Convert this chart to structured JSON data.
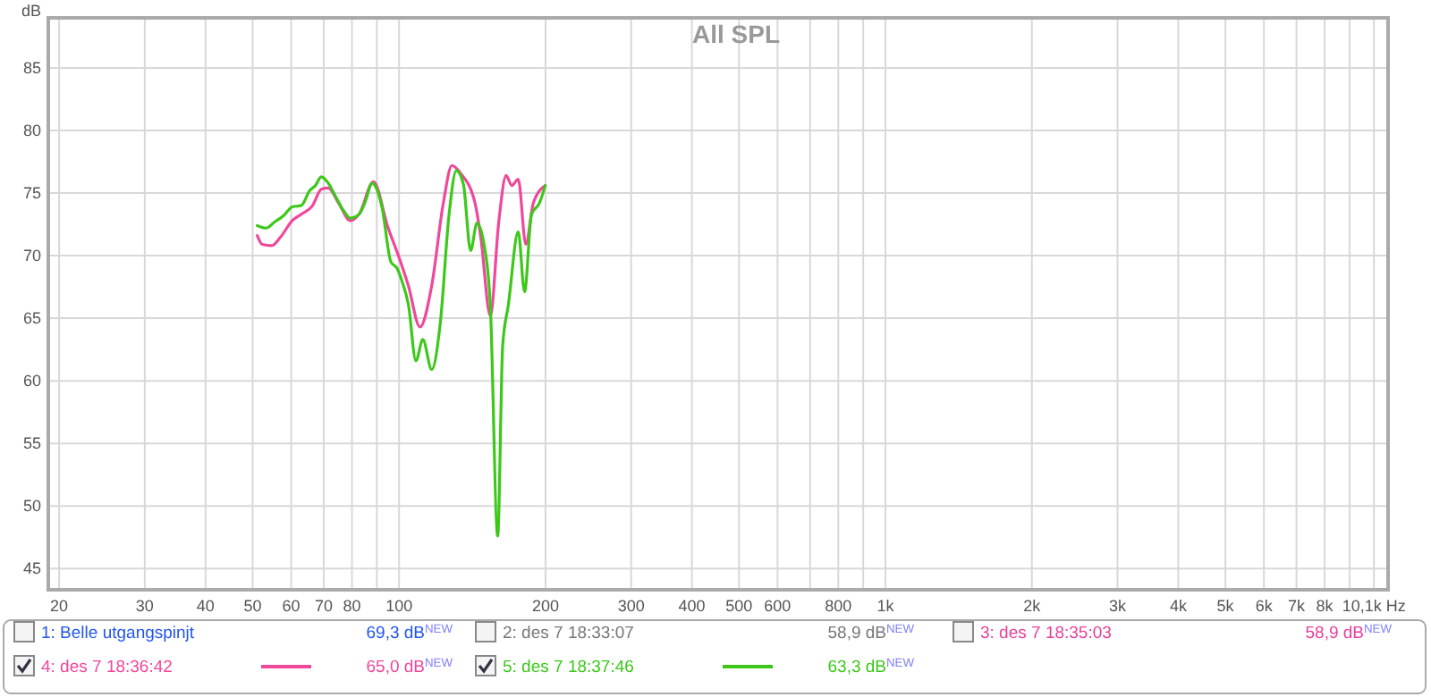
{
  "chart_data": {
    "type": "line",
    "title": "All SPL",
    "ylabel": "dB",
    "xlim": [
      19,
      10800
    ],
    "ylim": [
      43.3,
      89
    ],
    "log": "x",
    "grid": true,
    "legend": "bottom",
    "line_style": "solid",
    "marker": "none",
    "xticks": [
      20,
      30,
      40,
      50,
      60,
      70,
      80,
      {
        "value": 90,
        "label": null
      },
      100,
      200,
      300,
      400,
      500,
      600,
      {
        "value": 700,
        "label": null
      },
      800,
      {
        "value": 900,
        "label": null
      },
      {
        "value": 1000,
        "label": "1k"
      },
      {
        "value": 2000,
        "label": "2k"
      },
      {
        "value": 3000,
        "label": "3k"
      },
      {
        "value": 4000,
        "label": "4k"
      },
      {
        "value": 5000,
        "label": "5k"
      },
      {
        "value": 6000,
        "label": "6k"
      },
      {
        "value": 7000,
        "label": "7k"
      },
      {
        "value": 8000,
        "label": "8k"
      },
      {
        "value": 9000,
        "label": null
      },
      {
        "value": 10100,
        "label": "10,1k Hz"
      }
    ],
    "yticks": [
      45,
      50,
      55,
      60,
      65,
      70,
      75,
      80,
      85
    ],
    "series": [
      {
        "name": "4: des 7 18:36:42",
        "color": "#f0479b",
        "x": [
          51.1,
          52.3,
          54.7,
          57.1,
          60.3,
          62.9,
          66.4,
          69.2,
          71.5,
          75.1,
          79.4,
          82.7,
          88.6,
          94.8,
          100.3,
          104.5,
          110.4,
          116.7,
          123.3,
          128.4,
          133.7,
          143.3,
          147.3,
          154,
          160.4,
          166,
          170.5,
          175.8,
          182.2,
          188.8,
          199.8
        ],
        "values": [
          71.6,
          70.9,
          70.8,
          71.5,
          72.8,
          73.3,
          74.0,
          75.3,
          75.4,
          74.2,
          72.8,
          73.3,
          75.9,
          72.3,
          69.7,
          67.6,
          64.3,
          67.6,
          74.2,
          77.2,
          76.6,
          74.2,
          71.4,
          65.2,
          72.8,
          76.4,
          75.6,
          76.1,
          70.9,
          74.2,
          75.6
        ]
      },
      {
        "name": "5: des 7 18:37:46",
        "color": "#3cc819",
        "x": [
          51.1,
          53.3,
          55.5,
          57.9,
          60.3,
          62.9,
          65.5,
          67.3,
          69.2,
          71.5,
          74.1,
          77.2,
          79.4,
          82.7,
          85,
          88.1,
          89.8,
          92.3,
          96.2,
          99,
          101.7,
          104.5,
          108.3,
          111.9,
          116.7,
          121.6,
          126.7,
          131.1,
          135.6,
          140.3,
          144.6,
          149.5,
          154,
          159.5,
          163.3,
          167.8,
          175.8,
          181.1,
          187.2,
          194.3,
          199.8
        ],
        "values": [
          72.4,
          72.2,
          72.7,
          73.2,
          73.9,
          74.0,
          75.2,
          75.6,
          76.3,
          75.8,
          74.7,
          73.5,
          73.0,
          73.3,
          74.2,
          75.8,
          75.4,
          73.8,
          69.5,
          69.0,
          67.8,
          66.1,
          61.6,
          63.3,
          60.9,
          64.7,
          73.3,
          76.8,
          75.7,
          70.4,
          72.6,
          70.9,
          66.1,
          47.6,
          62.8,
          66.1,
          71.9,
          67.1,
          73.3,
          74.2,
          75.6
        ]
      }
    ],
    "annotations": [
      "1: Belle utgangspinjt",
      "69,3 dB$^{NEW}$",
      "2: des 7 18:33:07",
      "58,9 dB$^{NEW}$",
      "3: des 7 18:35:03",
      "58,9 dB$^{NEW}$",
      "65,0 dB$^{NEW}$",
      "63,3 dB$^{NEW}$"
    ]
  }
}
